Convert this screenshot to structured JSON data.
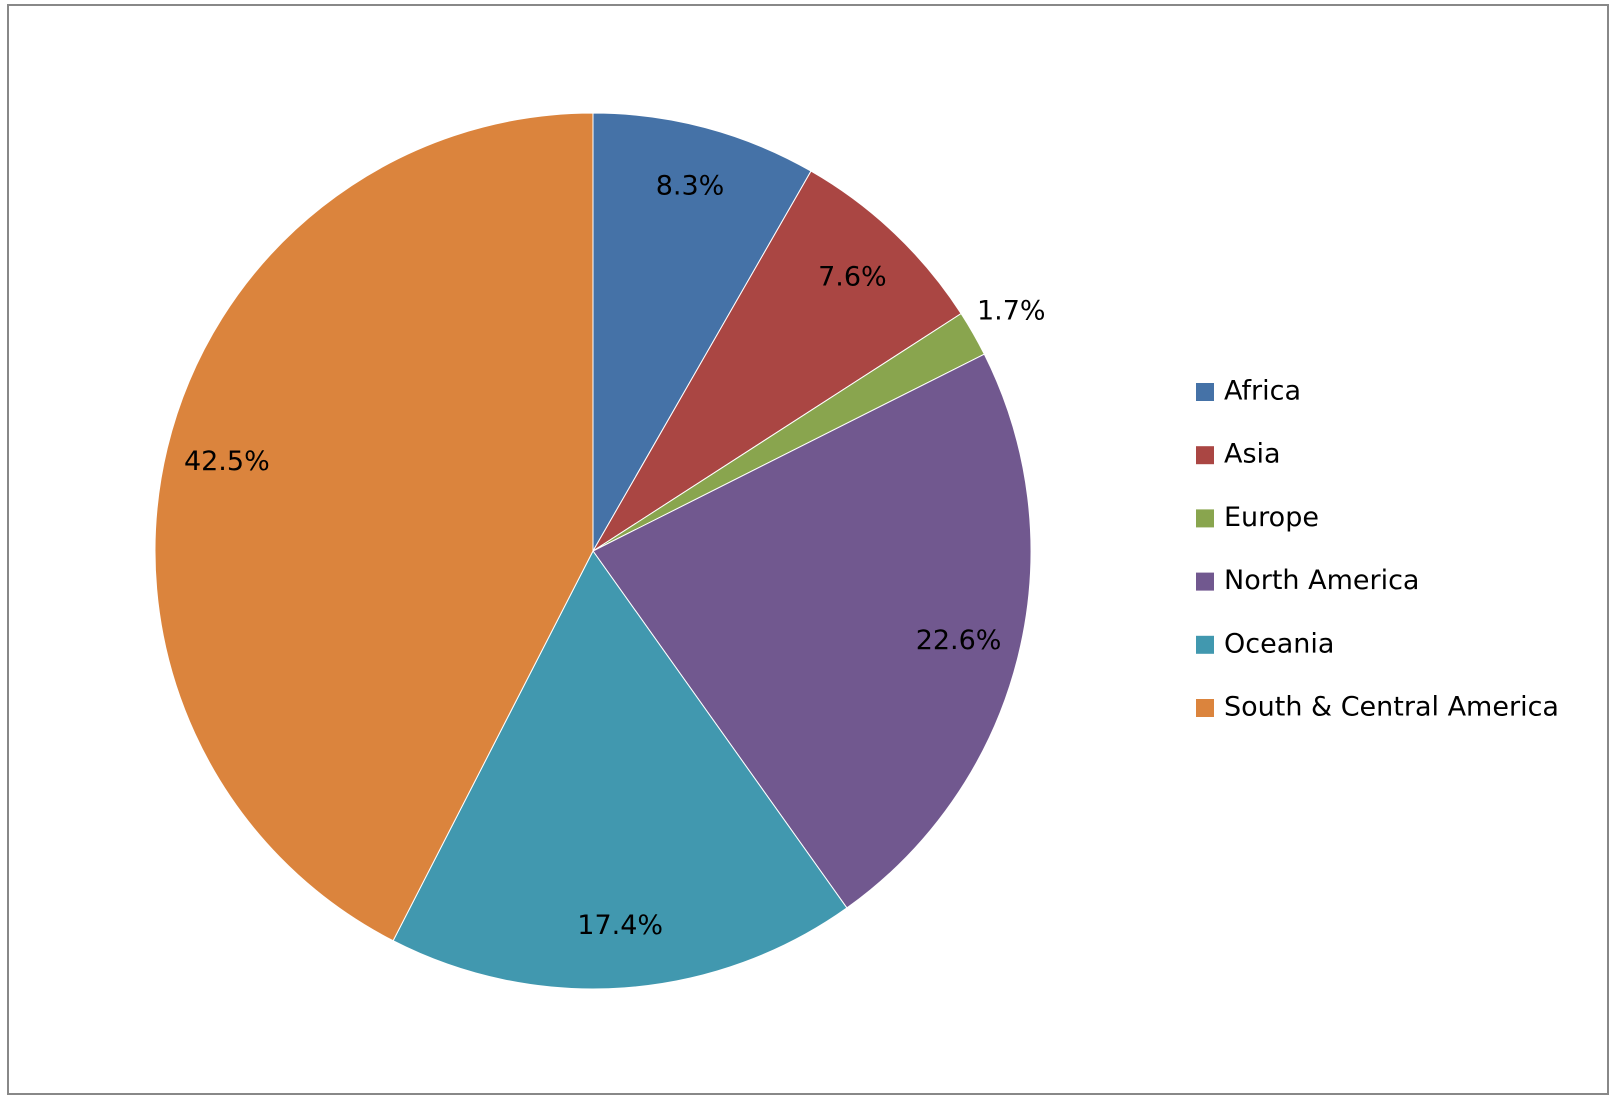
{
  "chart_data": {
    "type": "pie",
    "categories": [
      "Africa",
      "Asia",
      "Europe",
      "North America",
      "Oceania",
      "South & Central America"
    ],
    "values": [
      8.3,
      7.6,
      1.7,
      22.6,
      17.4,
      42.5
    ],
    "value_labels": [
      "8.3%",
      "7.6%",
      "1.7%",
      "22.6%",
      "17.4%",
      "42.5%"
    ],
    "colors": [
      "#4572a7",
      "#aa4643",
      "#89a54e",
      "#71588f",
      "#4198af",
      "#db843d"
    ],
    "legend": "right"
  }
}
